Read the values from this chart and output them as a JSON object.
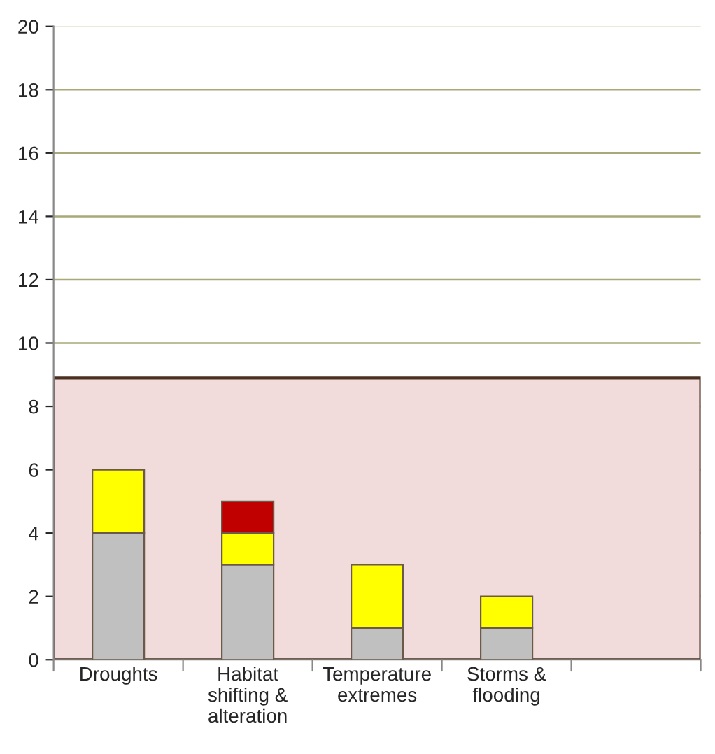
{
  "chart_data": {
    "type": "bar",
    "stacked": true,
    "categories": [
      "Droughts",
      "Habitat\nshifting &\nalteration",
      "Temperature\nextremes",
      "Storms &\nflooding",
      null
    ],
    "series": [
      {
        "color": "#c0c0c0",
        "values": [
          4,
          3,
          1,
          1,
          null
        ]
      },
      {
        "color": "#ffff00",
        "values": [
          2,
          1,
          2,
          1,
          null
        ]
      },
      {
        "color": "#c00000",
        "values": [
          null,
          1,
          null,
          null,
          null
        ]
      }
    ],
    "ylim": [
      0,
      20
    ],
    "yticks": [
      0,
      2,
      4,
      6,
      8,
      10,
      12,
      14,
      16,
      18,
      20
    ],
    "grid": "y",
    "legend": false,
    "bands": [
      {
        "axis": "y",
        "from": 0,
        "to": 8.9,
        "color": "#f2dcdb"
      }
    ]
  }
}
